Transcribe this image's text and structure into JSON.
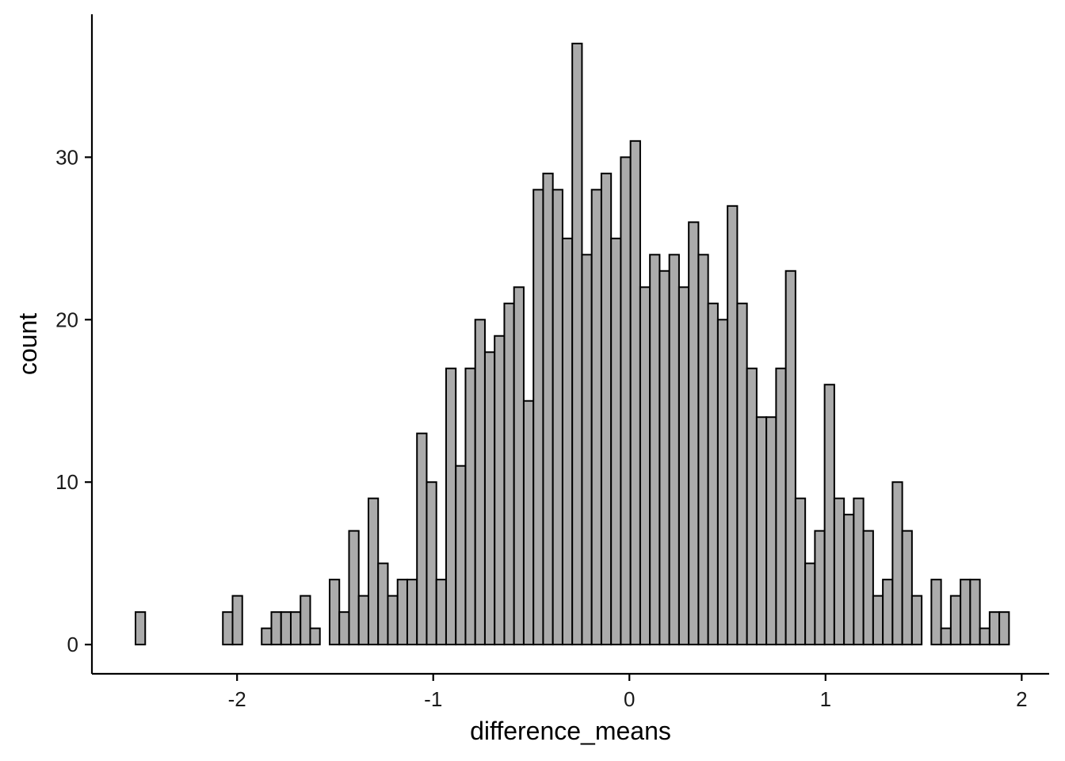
{
  "chart_data": {
    "type": "bar",
    "subtype": "histogram",
    "title": "",
    "xlabel": "difference_means",
    "ylabel": "count",
    "xlim": [
      -2.74,
      2.14
    ],
    "ylim": [
      -1.8,
      38.8
    ],
    "x_ticks": [
      -2,
      -1,
      0,
      1,
      2
    ],
    "x_tick_labels": [
      "-2",
      "-1",
      "0",
      "1",
      "2"
    ],
    "y_ticks": [
      0,
      10,
      20,
      30
    ],
    "y_tick_labels": [
      "0",
      "10",
      "20",
      "30"
    ],
    "grid": false,
    "legend": "none",
    "bin_width": 0.04948,
    "bin_start": -2.5178,
    "counts": [
      2,
      0,
      0,
      0,
      0,
      0,
      0,
      0,
      0,
      2,
      3,
      0,
      0,
      1,
      2,
      2,
      2,
      3,
      1,
      0,
      4,
      2,
      7,
      3,
      9,
      5,
      3,
      4,
      4,
      13,
      10,
      4,
      17,
      11,
      17,
      20,
      18,
      19,
      21,
      22,
      15,
      28,
      29,
      28,
      25,
      37,
      24,
      28,
      29,
      25,
      30,
      31,
      22,
      24,
      23,
      24,
      22,
      26,
      24,
      21,
      20,
      27,
      21,
      17,
      14,
      14,
      17,
      23,
      9,
      5,
      7,
      16,
      9,
      8,
      9,
      7,
      3,
      4,
      10,
      7,
      3,
      0,
      4,
      1,
      3,
      4,
      4,
      1,
      2,
      2
    ],
    "colors": {
      "bar_fill": "#ababab",
      "bar_stroke": "#000000",
      "axis": "#000000",
      "text": "#1a1a1a"
    }
  }
}
